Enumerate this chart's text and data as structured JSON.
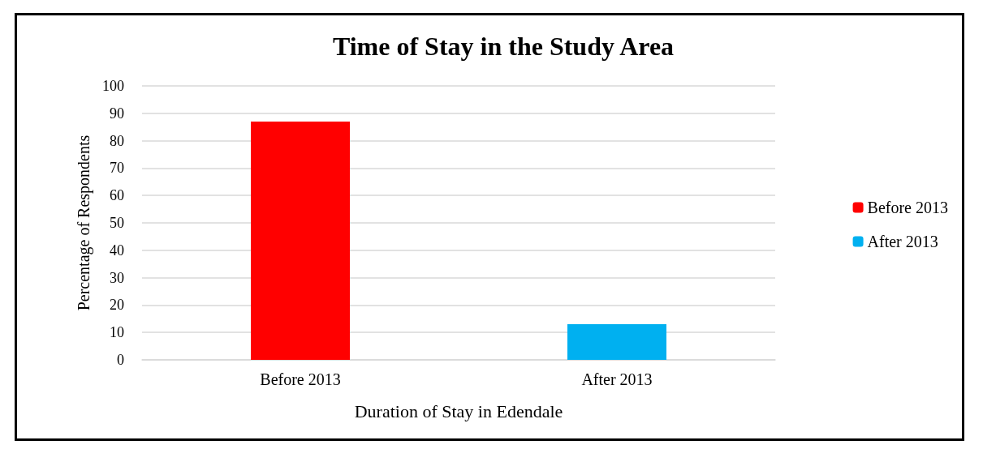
{
  "chart_data": {
    "type": "bar",
    "title": "Time of Stay in the Study Area",
    "xlabel": "Duration of Stay in Edendale",
    "ylabel": "Percentage of Respondents",
    "categories": [
      "Before 2013",
      "After 2013"
    ],
    "series": [
      {
        "name": "Before 2013",
        "color": "#ff0000",
        "values": [
          87,
          null
        ]
      },
      {
        "name": "After 2013",
        "color": "#00b0f0",
        "values": [
          null,
          13
        ]
      }
    ],
    "ylim": [
      0,
      100
    ],
    "yticks": [
      0,
      10,
      20,
      30,
      40,
      50,
      60,
      70,
      80,
      90,
      100
    ],
    "grid": "y",
    "legend": "right"
  }
}
